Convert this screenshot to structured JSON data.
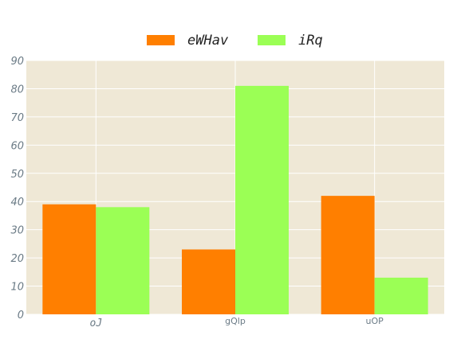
{
  "chart_data": {
    "type": "bar",
    "categories": [
      "oJ",
      "gQlp",
      "uOP"
    ],
    "series": [
      {
        "name": "eWHav",
        "values": [
          39,
          23,
          42
        ],
        "color": "#ff7f00"
      },
      {
        "name": "iRq",
        "values": [
          38,
          81,
          13
        ],
        "color": "#9bff55"
      }
    ],
    "ylim": [
      0,
      90
    ],
    "yticks": [
      0,
      10,
      20,
      30,
      40,
      50,
      60,
      70,
      80,
      90
    ],
    "grid": true,
    "legend_position": "top-center",
    "background_color": "#efe8d6",
    "grid_color": "#ffffff"
  }
}
